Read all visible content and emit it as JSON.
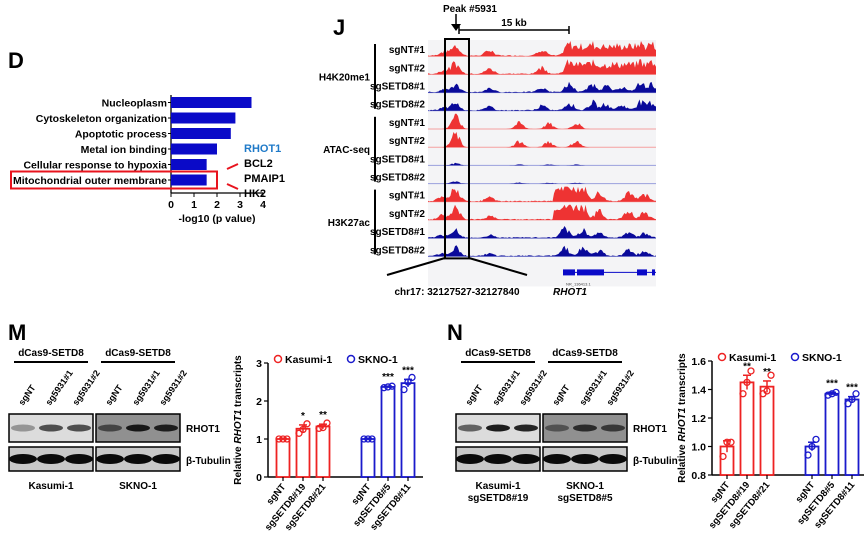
{
  "panels": {
    "D": "D",
    "J": "J",
    "M": "M",
    "N": "N"
  },
  "panelD": {
    "chart_data": {
      "type": "bar",
      "orientation": "horizontal",
      "categories": [
        "Nucleoplasm",
        "Cytoskeleton organization",
        "Apoptotic process",
        "Metal ion binding",
        "Cellular response to hypoxia",
        "Mitochondrial outer membrane"
      ],
      "values": [
        3.5,
        2.8,
        2.6,
        2.0,
        1.55,
        1.55
      ],
      "xlabel": "-log10 (p value)",
      "xlim": [
        0,
        4
      ],
      "xticks": [
        "0",
        "1",
        "2",
        "3",
        "4"
      ],
      "highlighted": "Mitochondrial outer membrane",
      "bar_color": "#0a0ac8",
      "highlight_color": "#e8141e"
    },
    "genes": [
      {
        "name": "RHOT1",
        "color": "#1f7ac8"
      },
      {
        "name": "BCL2",
        "color": "#000000"
      },
      {
        "name": "PMAIP1",
        "color": "#000000"
      },
      {
        "name": "HK2",
        "color": "#000000"
      }
    ]
  },
  "panelJ": {
    "peak_label": "Peak #5931",
    "scale_label": "15 kb",
    "groups": [
      {
        "name": "H4K20me1",
        "tracks": [
          "sgNT#1",
          "sgNT#2",
          "sgSETD8#1",
          "sgSETD8#2"
        ]
      },
      {
        "name": "ATAC-seq",
        "tracks": [
          "sgNT#1",
          "sgNT#2",
          "sgSETD8#1",
          "sgSETD8#2"
        ]
      },
      {
        "name": "H3K27ac",
        "tracks": [
          "sgNT#1",
          "sgNT#2",
          "sgSETD8#1",
          "sgSETD8#2"
        ]
      }
    ],
    "region_label": "chr17: 32127527-32127840",
    "gene_label": "RHOT1",
    "transcript_label": "NR_136413.1",
    "colors": {
      "sgNT": "#ee3333",
      "sgSETD8": "#0a0a9a"
    }
  },
  "panelM": {
    "blot": {
      "group_label": "dCas9-SETD8",
      "lanes": [
        "sgNT",
        "sg5931#1",
        "sg5931#2"
      ],
      "rows": [
        "RHOT1",
        "β-Tubulin"
      ],
      "cells": [
        "Kasumi-1",
        "SKNO-1"
      ]
    },
    "chart_data": {
      "type": "bar",
      "ylabel": "Relative RHOT1 transcripts",
      "ylim": [
        0,
        3
      ],
      "yticks": [
        "0",
        "1",
        "2",
        "3"
      ],
      "categories": [
        "sgNT",
        "sgSETD8#19",
        "sgSETD8#21",
        "sgNT",
        "sgSETD8#5",
        "sgSETD8#11"
      ],
      "series": [
        {
          "name": "Kasumi-1",
          "color": "#ee2222",
          "categories": [
            "sgNT",
            "sgSETD8#19",
            "sgSETD8#21"
          ],
          "values": [
            1.0,
            1.27,
            1.33
          ],
          "errors": [
            0.02,
            0.1,
            0.06
          ],
          "points": [
            [
              1.0,
              1.0,
              1.0
            ],
            [
              1.15,
              1.25,
              1.4
            ],
            [
              1.28,
              1.3,
              1.42
            ]
          ],
          "significance": [
            "",
            "*",
            "**"
          ]
        },
        {
          "name": "SKNO-1",
          "color": "#1a1acc",
          "categories": [
            "sgNT",
            "sgSETD8#5",
            "sgSETD8#11"
          ],
          "values": [
            1.0,
            2.37,
            2.47
          ],
          "errors": [
            0.02,
            0.02,
            0.1
          ],
          "points": [
            [
              1.0,
              1.0,
              1.0
            ],
            [
              2.35,
              2.37,
              2.39
            ],
            [
              2.3,
              2.5,
              2.62
            ]
          ],
          "significance": [
            "",
            "***",
            "***"
          ]
        }
      ]
    }
  },
  "panelN": {
    "blot": {
      "group_label": "dCas9-SETD8",
      "lanes": [
        "sgNT",
        "sg5931#1",
        "sg5931#2"
      ],
      "rows": [
        "RHOT1",
        "β-Tubulin"
      ],
      "cells": [
        [
          "Kasumi-1",
          "sgSETD8#19"
        ],
        [
          "SKNO-1",
          "sgSETD8#5"
        ]
      ]
    },
    "chart_data": {
      "type": "bar",
      "ylabel": "Relative RHOT1 transcripts",
      "ylim": [
        0.8,
        1.6
      ],
      "yticks": [
        "0.8",
        "1.0",
        "1.2",
        "1.4",
        "1.6"
      ],
      "categories": [
        "sgNT",
        "sgSETD8#19",
        "sgSETD8#21",
        "sgNT",
        "sgSETD8#5",
        "sgSETD8#11"
      ],
      "series": [
        {
          "name": "Kasumi-1",
          "color": "#ee2222",
          "categories": [
            "sgNT",
            "sgSETD8#19",
            "sgSETD8#21"
          ],
          "values": [
            1.0,
            1.45,
            1.42
          ],
          "errors": [
            0.04,
            0.05,
            0.04
          ],
          "points": [
            [
              0.93,
              1.03,
              1.03
            ],
            [
              1.37,
              1.45,
              1.53
            ],
            [
              1.37,
              1.39,
              1.5
            ]
          ],
          "significance": [
            "",
            "**",
            "**"
          ]
        },
        {
          "name": "SKNO-1",
          "color": "#1a1acc",
          "categories": [
            "sgNT",
            "sgSETD8#5",
            "sgSETD8#11"
          ],
          "values": [
            1.0,
            1.37,
            1.33
          ],
          "errors": [
            0.03,
            0.01,
            0.02
          ],
          "points": [
            [
              0.94,
              1.0,
              1.05
            ],
            [
              1.36,
              1.37,
              1.38
            ],
            [
              1.3,
              1.33,
              1.37
            ]
          ],
          "significance": [
            "",
            "***",
            "***"
          ]
        }
      ]
    }
  }
}
